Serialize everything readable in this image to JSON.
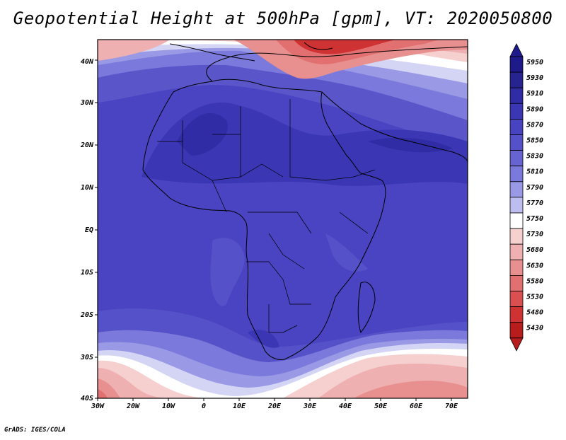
{
  "map": {
    "title": "Geopotential Height at 500hPa [gpm], VT: 2020050800",
    "variable": "Geopotential Height",
    "level": "500hPa",
    "units": "gpm",
    "valid_time": "2020050800",
    "lon_labels": [
      "30W",
      "20W",
      "10W",
      "0",
      "10E",
      "20E",
      "30E",
      "40E",
      "50E",
      "60E",
      "70E"
    ],
    "lat_labels": [
      "40N",
      "30N",
      "20N",
      "10N",
      "EQ",
      "10S",
      "20S",
      "30S",
      "40S"
    ],
    "colorbar": {
      "labels": [
        "5950",
        "5930",
        "5910",
        "5890",
        "5870",
        "5850",
        "5830",
        "5810",
        "5790",
        "5770",
        "5750",
        "5730",
        "5680",
        "5630",
        "5580",
        "5530",
        "5480",
        "5430"
      ],
      "colors": [
        "#1e1a8a",
        "#27238f",
        "#302ca6",
        "#3b36b4",
        "#4843c0",
        "#5551c8",
        "#6764d2",
        "#7b79db",
        "#9a99e6",
        "#bdbdf0",
        "#ffffff",
        "#f6cfcf",
        "#eeb0b0",
        "#e89090",
        "#e27070",
        "#da5050",
        "#cf3232",
        "#b81d1d"
      ]
    },
    "credit": "GrADS: IGES/COLA"
  }
}
